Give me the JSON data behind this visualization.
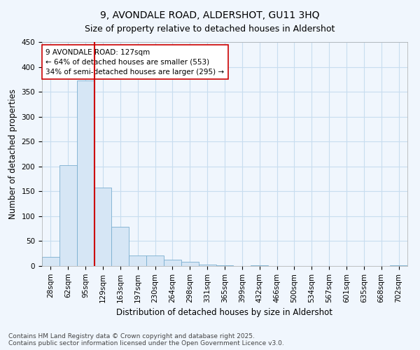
{
  "title": "9, AVONDALE ROAD, ALDERSHOT, GU11 3HQ",
  "subtitle": "Size of property relative to detached houses in Aldershot",
  "xlabel": "Distribution of detached houses by size in Aldershot",
  "ylabel": "Number of detached properties",
  "bar_labels": [
    "28sqm",
    "62sqm",
    "95sqm",
    "129sqm",
    "163sqm",
    "197sqm",
    "230sqm",
    "264sqm",
    "298sqm",
    "331sqm",
    "365sqm",
    "399sqm",
    "432sqm",
    "466sqm",
    "500sqm",
    "534sqm",
    "567sqm",
    "601sqm",
    "635sqm",
    "668sqm",
    "702sqm"
  ],
  "bar_values": [
    18,
    202,
    373,
    157,
    79,
    21,
    21,
    13,
    8,
    3,
    1,
    0,
    1,
    0,
    0,
    0,
    0,
    0,
    0,
    0,
    2
  ],
  "bar_color": "#d6e6f5",
  "bar_edge_color": "#7aaed0",
  "grid_color": "#c8ddef",
  "background_color": "#f0f6fd",
  "plot_bg_color": "#f0f6fd",
  "vline_x": 2.5,
  "vline_color": "#cc0000",
  "annotation_text": "9 AVONDALE ROAD: 127sqm\n← 64% of detached houses are smaller (553)\n34% of semi-detached houses are larger (295) →",
  "annotation_box_color": "#ffffff",
  "annotation_box_edge": "#cc0000",
  "ylim": [
    0,
    450
  ],
  "yticks": [
    0,
    50,
    100,
    150,
    200,
    250,
    300,
    350,
    400,
    450
  ],
  "footnote": "Contains HM Land Registry data © Crown copyright and database right 2025.\nContains public sector information licensed under the Open Government Licence v3.0.",
  "title_fontsize": 10,
  "subtitle_fontsize": 9,
  "label_fontsize": 8.5,
  "tick_fontsize": 7.5,
  "annotation_fontsize": 7.5,
  "footnote_fontsize": 6.5
}
